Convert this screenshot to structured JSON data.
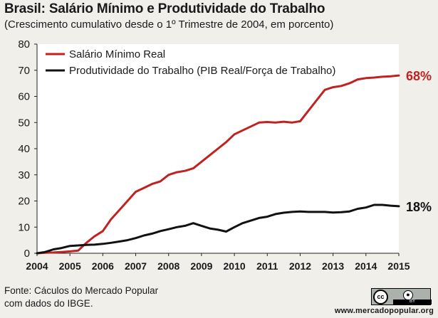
{
  "chart_data": {
    "type": "line",
    "title": "Brasil: Salário Mínimo e Produtividade do Trabalho",
    "subtitle": "(Crescimento cumulativo desde o 1º Trimestre de 2004, em porcento)",
    "xlabel": "",
    "ylabel": "",
    "xlim": [
      2004,
      2015
    ],
    "ylim": [
      0,
      80
    ],
    "x_ticks": [
      "2004",
      "2005",
      "2006",
      "2007",
      "2008",
      "2009",
      "2010",
      "2011",
      "2012",
      "2013",
      "2014",
      "2015"
    ],
    "y_ticks": [
      "0",
      "10",
      "20",
      "30",
      "40",
      "50",
      "60",
      "70",
      "80"
    ],
    "grid": false,
    "legend_position": "top-left",
    "series": [
      {
        "name": "Salário Mínimo Real",
        "color": "#c0221f",
        "end_label": "68%",
        "x": [
          2004.0,
          2004.25,
          2004.5,
          2004.75,
          2005.0,
          2005.25,
          2005.5,
          2005.75,
          2006.0,
          2006.25,
          2006.5,
          2006.75,
          2007.0,
          2007.25,
          2007.5,
          2007.75,
          2008.0,
          2008.25,
          2008.5,
          2008.75,
          2009.0,
          2009.25,
          2009.5,
          2009.75,
          2010.0,
          2010.25,
          2010.5,
          2010.75,
          2011.0,
          2011.25,
          2011.5,
          2011.75,
          2012.0,
          2012.25,
          2012.5,
          2012.75,
          2013.0,
          2013.25,
          2013.5,
          2013.75,
          2014.0,
          2014.25,
          2014.5,
          2014.75,
          2015.0
        ],
        "values": [
          0,
          0.2,
          0.3,
          0.5,
          0.7,
          1.0,
          4.0,
          6.5,
          8.5,
          13.0,
          16.5,
          20.0,
          23.5,
          25.0,
          26.5,
          27.5,
          30.0,
          31.0,
          31.5,
          32.5,
          35.0,
          37.5,
          40.0,
          42.5,
          45.5,
          47.0,
          48.5,
          50.0,
          50.2,
          50.0,
          50.3,
          50.0,
          50.5,
          54.5,
          58.5,
          62.5,
          63.5,
          64.0,
          65.0,
          66.5,
          67.0,
          67.2,
          67.5,
          67.7,
          68.0
        ]
      },
      {
        "name": "Produtividade do Trabalho (PIB Real/Força de Trabalho)",
        "color": "#111111",
        "end_label": "18%",
        "x": [
          2004.0,
          2004.25,
          2004.5,
          2004.75,
          2005.0,
          2005.25,
          2005.5,
          2005.75,
          2006.0,
          2006.25,
          2006.5,
          2006.75,
          2007.0,
          2007.25,
          2007.5,
          2007.75,
          2008.0,
          2008.25,
          2008.5,
          2008.75,
          2009.0,
          2009.25,
          2009.5,
          2009.75,
          2010.0,
          2010.25,
          2010.5,
          2010.75,
          2011.0,
          2011.25,
          2011.5,
          2011.75,
          2012.0,
          2012.25,
          2012.5,
          2012.75,
          2013.0,
          2013.25,
          2013.5,
          2013.75,
          2014.0,
          2014.25,
          2014.5,
          2014.75,
          2015.0
        ],
        "values": [
          0,
          0.5,
          1.5,
          2.0,
          2.8,
          3.0,
          3.2,
          3.3,
          3.6,
          4.0,
          4.5,
          5.0,
          5.8,
          6.8,
          7.5,
          8.5,
          9.2,
          10.0,
          10.5,
          11.5,
          10.5,
          9.5,
          9.0,
          8.3,
          10.0,
          11.5,
          12.5,
          13.5,
          14.0,
          15.0,
          15.5,
          15.8,
          16.0,
          15.8,
          15.8,
          15.8,
          15.6,
          15.7,
          16.0,
          17.0,
          17.5,
          18.5,
          18.5,
          18.2,
          18.0
        ]
      }
    ]
  },
  "footer": {
    "source_line1": "Fonte:  Cáculos do Mercado Popular",
    "source_line2": "com dados do IBGE.",
    "site": "www.mercadopopular.org",
    "license_cc": "cc",
    "license_by_icon": "person-icon",
    "license_by": "BY"
  }
}
